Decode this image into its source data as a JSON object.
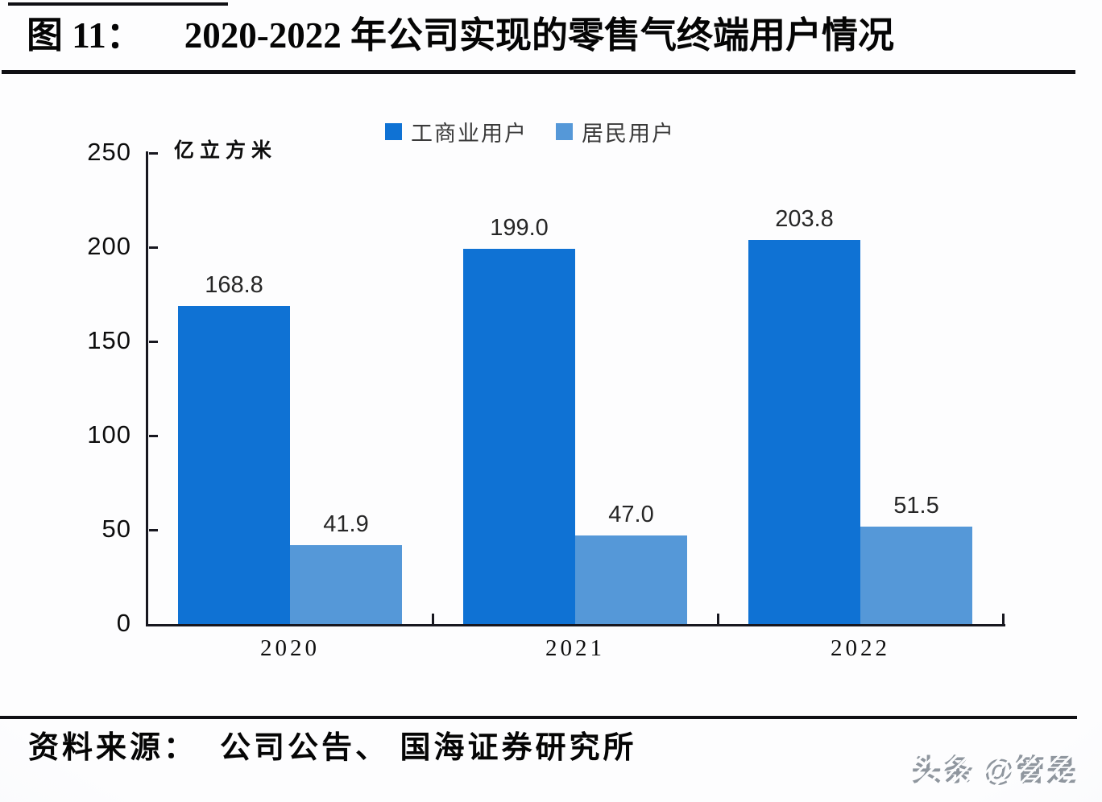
{
  "title": {
    "figure_label": "图 11：",
    "text": "2020-2022 年公司实现的零售气终端用户情况"
  },
  "source": {
    "prefix": "资料来源：",
    "text": "公司公告、 国海证券研究所"
  },
  "watermark": "头条 @管是",
  "colors": {
    "industrial_blue": "#0f72d4",
    "residential_blue": "#5598d8",
    "axis_black": "#17171f"
  },
  "chart_data": {
    "type": "bar",
    "categories": [
      "2020",
      "2021",
      "2022"
    ],
    "series": [
      {
        "name": "工商业用户",
        "color": "#0f72d4",
        "values": [
          168.8,
          199.0,
          203.8
        ]
      },
      {
        "name": "居民用户",
        "color": "#5598d8",
        "values": [
          41.9,
          47.0,
          51.5
        ]
      }
    ],
    "ylabel": "亿立方米",
    "xlabel": "",
    "ylim": [
      0,
      250
    ],
    "yticks": [
      0,
      50,
      100,
      150,
      200,
      250
    ],
    "grid": false,
    "value_labels": true,
    "legend_position": "top"
  }
}
